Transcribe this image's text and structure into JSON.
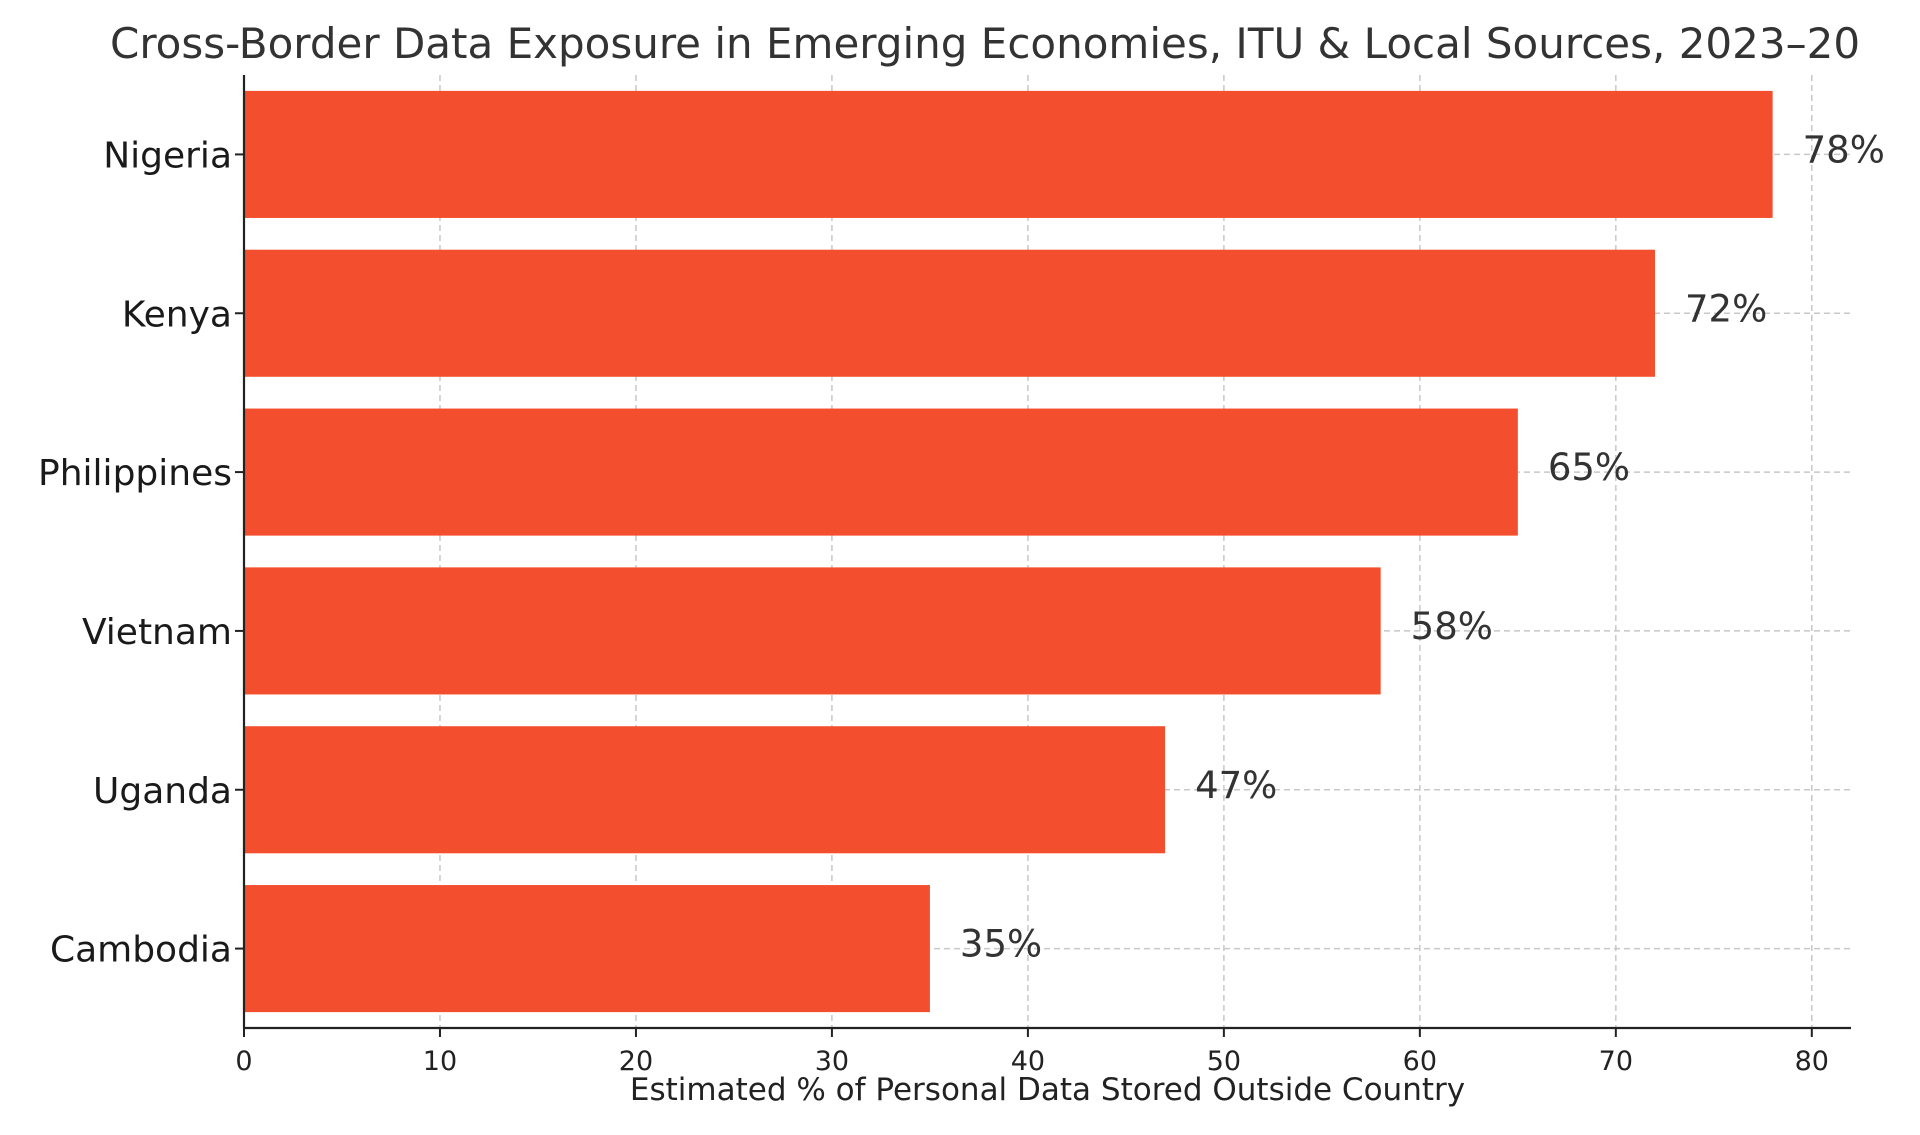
{
  "chart_data": {
    "type": "bar",
    "orientation": "horizontal",
    "title": "Cross-Border Data Exposure in Emerging Economies, ITU & Local Sources, 2023–20",
    "xlabel": "Estimated % of Personal Data Stored Outside Country",
    "ylabel": "",
    "categories": [
      "Nigeria",
      "Kenya",
      "Philippines",
      "Vietnam",
      "Uganda",
      "Cambodia"
    ],
    "values": [
      78,
      72,
      65,
      58,
      47,
      35
    ],
    "data_labels": [
      "78%",
      "72%",
      "65%",
      "58%",
      "47%",
      "35%"
    ],
    "xlim": [
      0,
      82
    ],
    "xticks": [
      0,
      10,
      20,
      30,
      40,
      50,
      60,
      70,
      80
    ],
    "grid": true,
    "legend": "none",
    "bar_color": "#f34e2d"
  }
}
